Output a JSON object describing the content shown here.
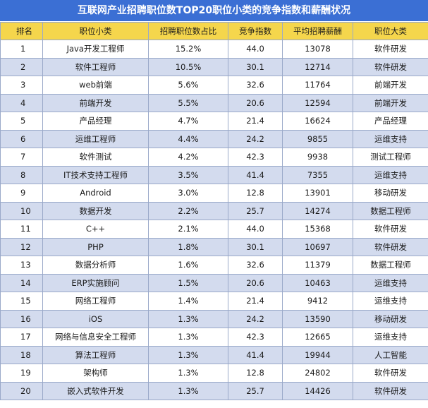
{
  "chart_data": {
    "type": "table",
    "title": "互联网产业招聘职位数TOP20职位小类的竞争指数和薪酬状况",
    "columns": [
      "排名",
      "职位小类",
      "招聘职位数占比",
      "竞争指数",
      "平均招聘薪酬",
      "职位大类"
    ],
    "rows": [
      [
        "1",
        "Java开发工程师",
        "15.2%",
        "44.0",
        "13078",
        "软件研发"
      ],
      [
        "2",
        "软件工程师",
        "10.5%",
        "30.1",
        "12714",
        "软件研发"
      ],
      [
        "3",
        "web前端",
        "5.6%",
        "32.6",
        "11764",
        "前端开发"
      ],
      [
        "4",
        "前端开发",
        "5.5%",
        "20.6",
        "12594",
        "前端开发"
      ],
      [
        "5",
        "产品经理",
        "4.7%",
        "21.4",
        "16624",
        "产品经理"
      ],
      [
        "6",
        "运维工程师",
        "4.4%",
        "24.2",
        "9855",
        "运维支持"
      ],
      [
        "7",
        "软件测试",
        "4.2%",
        "42.3",
        "9938",
        "测试工程师"
      ],
      [
        "8",
        "IT技术支持工程师",
        "3.5%",
        "41.4",
        "7355",
        "运维支持"
      ],
      [
        "9",
        "Android",
        "3.0%",
        "12.8",
        "13901",
        "移动研发"
      ],
      [
        "10",
        "数据开发",
        "2.2%",
        "25.7",
        "14274",
        "数据工程师"
      ],
      [
        "11",
        "C++",
        "2.1%",
        "44.0",
        "15368",
        "软件研发"
      ],
      [
        "12",
        "PHP",
        "1.8%",
        "30.1",
        "10697",
        "软件研发"
      ],
      [
        "13",
        "数据分析师",
        "1.6%",
        "32.6",
        "11379",
        "数据工程师"
      ],
      [
        "14",
        "ERP实施顾问",
        "1.5%",
        "20.6",
        "10463",
        "运维支持"
      ],
      [
        "15",
        "网络工程师",
        "1.4%",
        "21.4",
        "9412",
        "运维支持"
      ],
      [
        "16",
        "iOS",
        "1.3%",
        "24.2",
        "13590",
        "移动研发"
      ],
      [
        "17",
        "网络与信息安全工程师",
        "1.3%",
        "42.3",
        "12665",
        "运维支持"
      ],
      [
        "18",
        "算法工程师",
        "1.3%",
        "41.4",
        "19944",
        "人工智能"
      ],
      [
        "19",
        "架构师",
        "1.3%",
        "12.8",
        "24802",
        "软件研发"
      ],
      [
        "20",
        "嵌入式软件开发",
        "1.3%",
        "25.7",
        "14426",
        "软件研发"
      ]
    ]
  },
  "colors": {
    "title_background": "#3b6fd4",
    "header_background": "#f5d64c",
    "stripe_background": "#d3dbee",
    "border": "#9aa9c9"
  }
}
